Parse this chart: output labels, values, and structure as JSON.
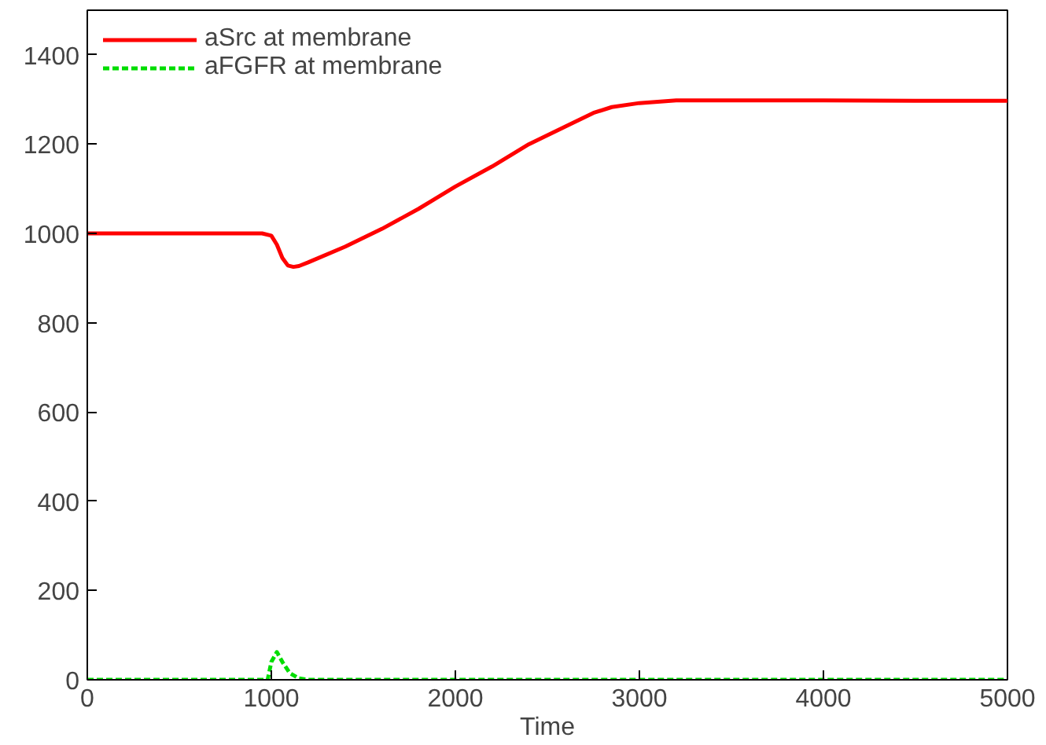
{
  "chart_data": {
    "type": "line",
    "xlabel": "Time",
    "xlim": [
      0,
      5000
    ],
    "ylim": [
      0,
      1500
    ],
    "xticks": [
      0,
      1000,
      2000,
      3000,
      4000,
      5000
    ],
    "yticks": [
      0,
      200,
      400,
      600,
      800,
      1000,
      1200,
      1400
    ],
    "grid": false,
    "legend": "top left",
    "marker": "none",
    "series": [
      {
        "name": "aSrc at membrane",
        "color": "#ff0000",
        "line_style": "solid",
        "x": [
          0,
          500,
          950,
          1000,
          1030,
          1060,
          1090,
          1120,
          1150,
          1200,
          1400,
          1600,
          1800,
          2000,
          2200,
          2400,
          2600,
          2750,
          2850,
          3000,
          3200,
          3500,
          4000,
          4500,
          5000
        ],
        "values": [
          1000,
          1000,
          1000,
          995,
          975,
          945,
          928,
          925,
          927,
          935,
          970,
          1010,
          1055,
          1105,
          1150,
          1200,
          1240,
          1270,
          1283,
          1292,
          1298,
          1298,
          1298,
          1297,
          1297
        ]
      },
      {
        "name": "aFGFR at membrane",
        "color": "#00dd00",
        "line_style": "dashed",
        "x": [
          0,
          980,
          1000,
          1030,
          1060,
          1100,
          1150,
          1200,
          2000,
          3000,
          4000,
          5000
        ],
        "values": [
          0,
          0,
          40,
          62,
          40,
          15,
          3,
          0,
          0,
          0,
          0,
          0
        ]
      }
    ]
  }
}
